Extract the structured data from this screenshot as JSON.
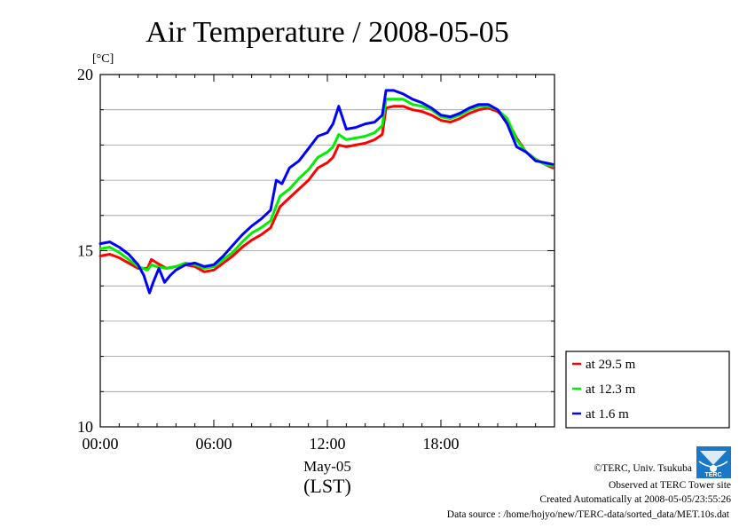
{
  "chart_data": {
    "type": "line",
    "title": "Air Temperature / 2008-05-05",
    "ylabel": "[°C]",
    "xlabel": "May-05",
    "xlabel2": "(LST)",
    "xlim": [
      0,
      24
    ],
    "ylim": [
      10,
      20
    ],
    "yticks": [
      10,
      15,
      20
    ],
    "xticks": [
      {
        "value": 0,
        "label": "00:00"
      },
      {
        "value": 6,
        "label": "06:00"
      },
      {
        "value": 12,
        "label": "12:00"
      },
      {
        "value": 18,
        "label": "18:00"
      }
    ],
    "grid": true,
    "legend_position": "right",
    "series": [
      {
        "name": "at 29.5 m",
        "color": "#ff0000",
        "x": [
          0,
          0.5,
          1,
          1.5,
          2,
          2.5,
          2.7,
          3,
          3.5,
          4,
          4.5,
          5,
          5.5,
          6,
          6.5,
          7,
          7.5,
          8,
          8.5,
          9,
          9.5,
          10,
          10.5,
          11,
          11.5,
          12,
          12.3,
          12.6,
          13,
          13.5,
          14,
          14.5,
          14.9,
          15.1,
          15.5,
          16,
          16.5,
          17,
          17.5,
          18,
          18.5,
          19,
          19.5,
          20,
          20.5,
          21,
          21.5,
          22,
          22.5,
          23,
          23.5,
          23.9
        ],
        "y": [
          14.85,
          14.9,
          14.8,
          14.65,
          14.5,
          14.5,
          14.75,
          14.65,
          14.5,
          14.55,
          14.6,
          14.55,
          14.4,
          14.45,
          14.65,
          14.85,
          15.1,
          15.3,
          15.45,
          15.65,
          16.25,
          16.5,
          16.75,
          17.0,
          17.35,
          17.5,
          17.65,
          18.0,
          17.95,
          18.0,
          18.05,
          18.15,
          18.3,
          19.05,
          19.1,
          19.1,
          19.0,
          18.95,
          18.85,
          18.7,
          18.65,
          18.75,
          18.9,
          19.0,
          19.05,
          18.95,
          18.7,
          18.2,
          17.8,
          17.6,
          17.45,
          17.35
        ]
      },
      {
        "name": "at 12.3 m",
        "color": "#00ee00",
        "x": [
          0,
          0.5,
          1,
          1.5,
          2,
          2.5,
          2.7,
          3,
          3.5,
          4,
          4.5,
          5,
          5.5,
          6,
          6.5,
          7,
          7.5,
          8,
          8.5,
          9,
          9.5,
          10,
          10.5,
          11,
          11.5,
          12,
          12.3,
          12.6,
          13,
          13.5,
          14,
          14.5,
          14.9,
          15.1,
          15.5,
          16,
          16.5,
          17,
          17.5,
          18,
          18.5,
          19,
          19.5,
          20,
          20.5,
          21,
          21.5,
          22,
          22.5,
          23,
          23.5,
          23.9
        ],
        "y": [
          15.05,
          15.1,
          14.95,
          14.75,
          14.55,
          14.45,
          14.6,
          14.55,
          14.5,
          14.55,
          14.65,
          14.6,
          14.5,
          14.55,
          14.75,
          14.95,
          15.25,
          15.5,
          15.65,
          15.85,
          16.55,
          16.75,
          17.05,
          17.3,
          17.65,
          17.8,
          17.95,
          18.3,
          18.15,
          18.2,
          18.25,
          18.35,
          18.55,
          19.3,
          19.3,
          19.3,
          19.15,
          19.1,
          19.0,
          18.8,
          18.75,
          18.85,
          19.0,
          19.1,
          19.1,
          19.0,
          18.75,
          18.15,
          17.8,
          17.6,
          17.45,
          17.4
        ]
      },
      {
        "name": "at 1.6 m",
        "color": "#0000ff",
        "x": [
          0,
          0.5,
          1,
          1.5,
          2,
          2.3,
          2.6,
          2.8,
          3.1,
          3.4,
          3.7,
          4,
          4.5,
          5,
          5.5,
          6,
          6.5,
          7,
          7.5,
          8,
          8.5,
          9,
          9.3,
          9.6,
          10,
          10.5,
          11,
          11.5,
          12,
          12.3,
          12.6,
          13,
          13.5,
          14,
          14.5,
          14.9,
          15.1,
          15.5,
          16,
          16.5,
          17,
          17.5,
          18,
          18.5,
          19,
          19.5,
          20,
          20.5,
          21,
          21.5,
          22,
          22.5,
          23,
          23.5,
          23.9
        ],
        "y": [
          15.2,
          15.25,
          15.1,
          14.9,
          14.6,
          14.3,
          13.8,
          14.1,
          14.5,
          14.1,
          14.3,
          14.45,
          14.6,
          14.65,
          14.55,
          14.6,
          14.85,
          15.15,
          15.45,
          15.7,
          15.9,
          16.15,
          17.0,
          16.9,
          17.35,
          17.55,
          17.9,
          18.25,
          18.35,
          18.6,
          19.1,
          18.45,
          18.5,
          18.6,
          18.65,
          18.85,
          19.55,
          19.55,
          19.45,
          19.3,
          19.2,
          19.05,
          18.85,
          18.8,
          18.9,
          19.05,
          19.15,
          19.15,
          19.0,
          18.6,
          17.95,
          17.8,
          17.55,
          17.5,
          17.45
        ]
      }
    ]
  },
  "footer": {
    "copyright": "©TERC, Univ. Tsukuba",
    "observed": "Observed at TERC Tower site",
    "created": "Created Automatically at 2008-05-05/23:55:26",
    "source": "Data source : /home/hojyo/new/TERC-data/sorted_data/MET.10s.dat",
    "logo_text": "TERC"
  }
}
